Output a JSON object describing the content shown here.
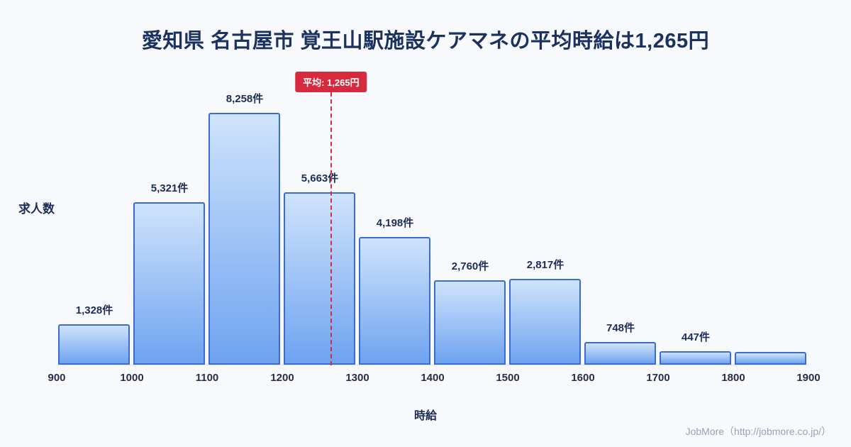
{
  "footer": {
    "text": "JobMore（http://jobmore.co.jp/）"
  },
  "colors": {
    "background": "#f7f9fd",
    "title_text": "#1b3160",
    "bar_gradient_top": "#cfe3fb",
    "bar_gradient_bottom": "#6ea3f0",
    "bar_border": "#3a6cd4",
    "average_line": "#d62b3e",
    "label_text": "#1c2e54",
    "footer_text": "#99a2b4"
  },
  "chart_data": {
    "type": "bar",
    "title": "愛知県 名古屋市 覚王山駅施設ケアマネの平均時給は1,265円",
    "xlabel": "時給",
    "ylabel": "求人数",
    "x_range": [
      900,
      1900
    ],
    "bin_width": 100,
    "x_ticks": [
      "900",
      "1000",
      "1100",
      "1200",
      "1300",
      "1400",
      "1500",
      "1600",
      "1700",
      "1800",
      "1900"
    ],
    "grid": false,
    "legend": false,
    "average": {
      "value": 1265,
      "label": "平均: 1,265円"
    },
    "bins": [
      {
        "range": [
          900,
          1000
        ],
        "value": 1328,
        "label": "1,328件"
      },
      {
        "range": [
          1000,
          1100
        ],
        "value": 5321,
        "label": "5,321件"
      },
      {
        "range": [
          1100,
          1200
        ],
        "value": 8258,
        "label": "8,258件"
      },
      {
        "range": [
          1200,
          1300
        ],
        "value": 5663,
        "label": "5,663件"
      },
      {
        "range": [
          1300,
          1400
        ],
        "value": 4198,
        "label": "4,198件"
      },
      {
        "range": [
          1400,
          1500
        ],
        "value": 2760,
        "label": "2,760件"
      },
      {
        "range": [
          1500,
          1600
        ],
        "value": 2817,
        "label": "2,817件"
      },
      {
        "range": [
          1600,
          1700
        ],
        "value": 748,
        "label": "748件"
      },
      {
        "range": [
          1700,
          1800
        ],
        "value": 447,
        "label": "447件"
      },
      {
        "range": [
          1800,
          1900
        ],
        "value": 430,
        "label": ""
      }
    ]
  }
}
